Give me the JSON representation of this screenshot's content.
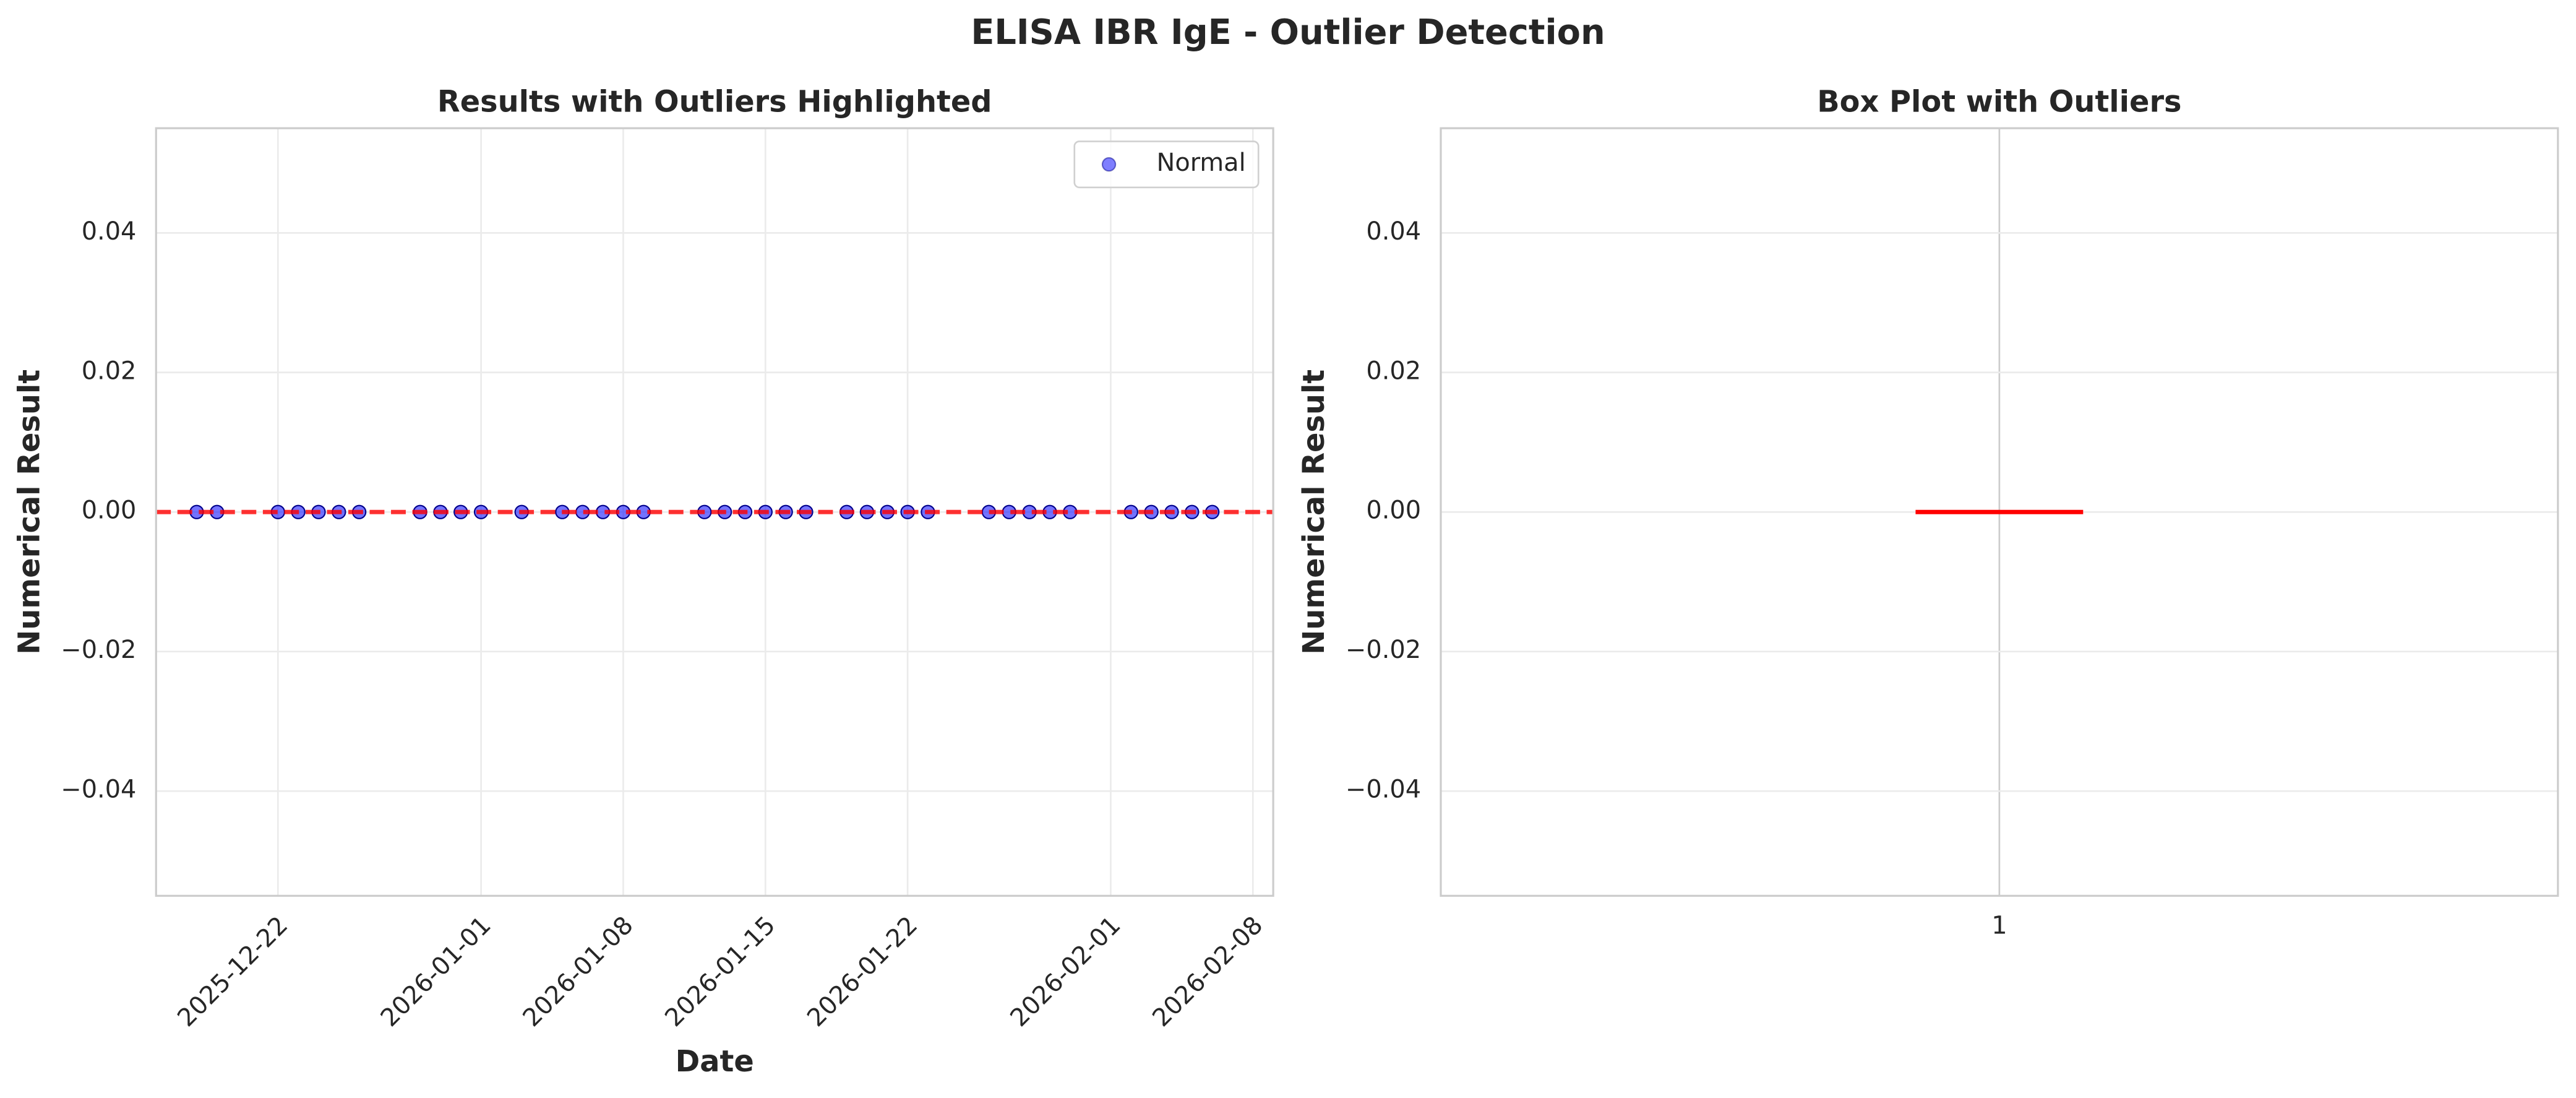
{
  "title": "ELISA IBR IgE - Outlier Detection",
  "chart_data": [
    {
      "type": "scatter",
      "title": "Results with Outliers Highlighted",
      "xlabel": "Date",
      "ylabel": "Numerical Result",
      "series": [
        {
          "name": "Normal",
          "color": "#0000ff",
          "x": [
            "2025-12-18",
            "2025-12-19",
            "2025-12-22",
            "2025-12-23",
            "2025-12-24",
            "2025-12-25",
            "2025-12-26",
            "2025-12-29",
            "2025-12-30",
            "2025-12-31",
            "2026-01-01",
            "2026-01-03",
            "2026-01-05",
            "2026-01-06",
            "2026-01-07",
            "2026-01-08",
            "2026-01-09",
            "2026-01-12",
            "2026-01-13",
            "2026-01-14",
            "2026-01-15",
            "2026-01-16",
            "2026-01-17",
            "2026-01-19",
            "2026-01-20",
            "2026-01-21",
            "2026-01-22",
            "2026-01-23",
            "2026-01-26",
            "2026-01-27",
            "2026-01-28",
            "2026-01-29",
            "2026-01-30",
            "2026-02-02",
            "2026-02-03",
            "2026-02-04",
            "2026-02-05",
            "2026-02-06"
          ],
          "values": [
            0,
            0,
            0,
            0,
            0,
            0,
            0,
            0,
            0,
            0,
            0,
            0,
            0,
            0,
            0,
            0,
            0,
            0,
            0,
            0,
            0,
            0,
            0,
            0,
            0,
            0,
            0,
            0,
            0,
            0,
            0,
            0,
            0,
            0,
            0,
            0,
            0,
            0
          ]
        }
      ],
      "hline": 0,
      "hline_color": "#ff0000",
      "xlim": [
        "2025-12-16",
        "2026-02-09"
      ],
      "xticks": [
        "2025-12-22",
        "2026-01-01",
        "2026-01-08",
        "2026-01-15",
        "2026-01-22",
        "2026-02-01",
        "2026-02-08"
      ],
      "ylim": [
        -0.055,
        0.055
      ],
      "yticks": [
        {
          "value": -0.04,
          "label": "−0.04"
        },
        {
          "value": -0.02,
          "label": "−0.02"
        },
        {
          "value": 0,
          "label": "0.00"
        },
        0.02,
        0.04
      ],
      "grid": true,
      "legend": "upper right"
    },
    {
      "type": "box",
      "title": "Box Plot with Outliers",
      "ylabel": "Numerical Result",
      "categories": [
        "1"
      ],
      "boxes": [
        {
          "whislo": 0,
          "q1": 0,
          "median": 0,
          "q3": 0,
          "whishi": 0
        }
      ],
      "median_color": "#ff0000",
      "ylim": [
        -0.055,
        0.055
      ],
      "yticks": [
        {
          "value": -0.04,
          "label": "−0.04"
        },
        {
          "value": -0.02,
          "label": "−0.02"
        },
        {
          "value": 0,
          "label": "0.00"
        },
        0.02,
        0.04
      ],
      "grid": true
    }
  ]
}
